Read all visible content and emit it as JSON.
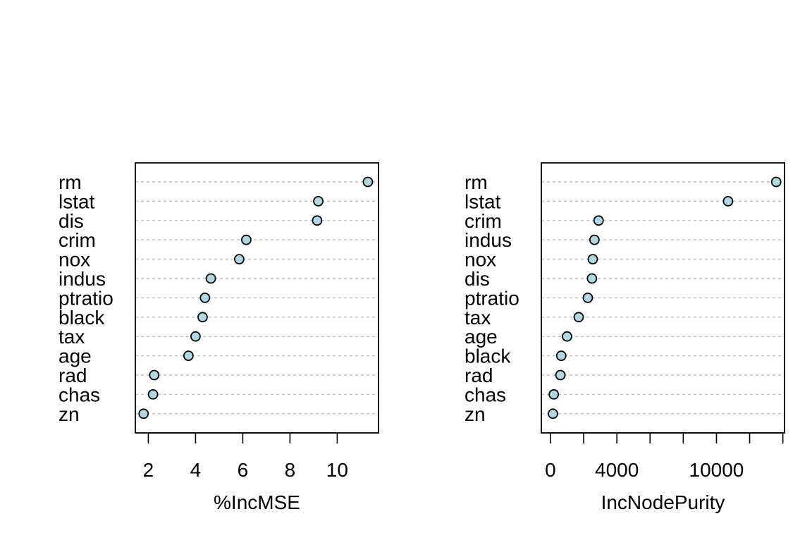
{
  "colors": {
    "point_fill": "#add8e6",
    "point_stroke": "#000000",
    "guide_line": "#bebebe",
    "frame": "#000000"
  },
  "chart_data": [
    {
      "type": "scatter",
      "style": "dotchart",
      "title": "",
      "xlabel": "%IncMSE",
      "ylabel": "",
      "grid": false,
      "xlim": [
        1.45,
        11.75
      ],
      "xticks": [
        2,
        4,
        6,
        8,
        10
      ],
      "xtick_labels": [
        "2",
        "4",
        "6",
        "8",
        "10"
      ],
      "categories": [
        "rm",
        "lstat",
        "dis",
        "crim",
        "nox",
        "indus",
        "ptratio",
        "black",
        "tax",
        "age",
        "rad",
        "chas",
        "zn"
      ],
      "values": [
        11.3,
        9.2,
        9.15,
        6.15,
        5.85,
        4.65,
        4.4,
        4.3,
        4.0,
        3.7,
        2.25,
        2.2,
        1.8
      ]
    },
    {
      "type": "scatter",
      "style": "dotchart",
      "title": "",
      "xlabel": "IncNodePurity",
      "ylabel": "",
      "grid": false,
      "xlim": [
        -550,
        14100
      ],
      "xticks": [
        0,
        2000,
        4000,
        6000,
        8000,
        10000,
        12000,
        14000
      ],
      "xtick_labels": [
        "0",
        "",
        "4000",
        "",
        "",
        "10000",
        "",
        ""
      ],
      "categories": [
        "rm",
        "lstat",
        "crim",
        "indus",
        "nox",
        "dis",
        "ptratio",
        "tax",
        "age",
        "black",
        "rad",
        "chas",
        "zn"
      ],
      "values": [
        13600,
        10700,
        2900,
        2650,
        2550,
        2500,
        2250,
        1700,
        1000,
        650,
        600,
        200,
        150
      ]
    }
  ]
}
